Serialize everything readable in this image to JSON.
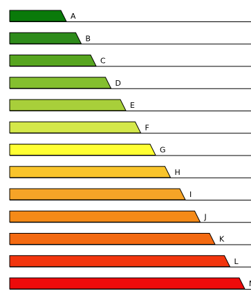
{
  "chart_data": {
    "type": "bar",
    "title": "",
    "xlabel": "",
    "ylabel": "",
    "categories": [
      "A",
      "B",
      "C",
      "D",
      "E",
      "F",
      "G",
      "H",
      "I",
      "J",
      "K",
      "L",
      "M"
    ],
    "values": [
      1,
      2,
      3,
      4,
      5,
      6,
      7,
      8,
      9,
      10,
      11,
      12,
      13
    ],
    "colors": [
      "#0a7a0a",
      "#2e8b1b",
      "#57a520",
      "#84bf2f",
      "#a8cf3a",
      "#d4e84a",
      "#ffff33",
      "#f9c42b",
      "#f6a427",
      "#f58a17",
      "#f36a12",
      "#f2350d",
      "#ee0b0b"
    ],
    "grid": false,
    "legend": "none"
  }
}
